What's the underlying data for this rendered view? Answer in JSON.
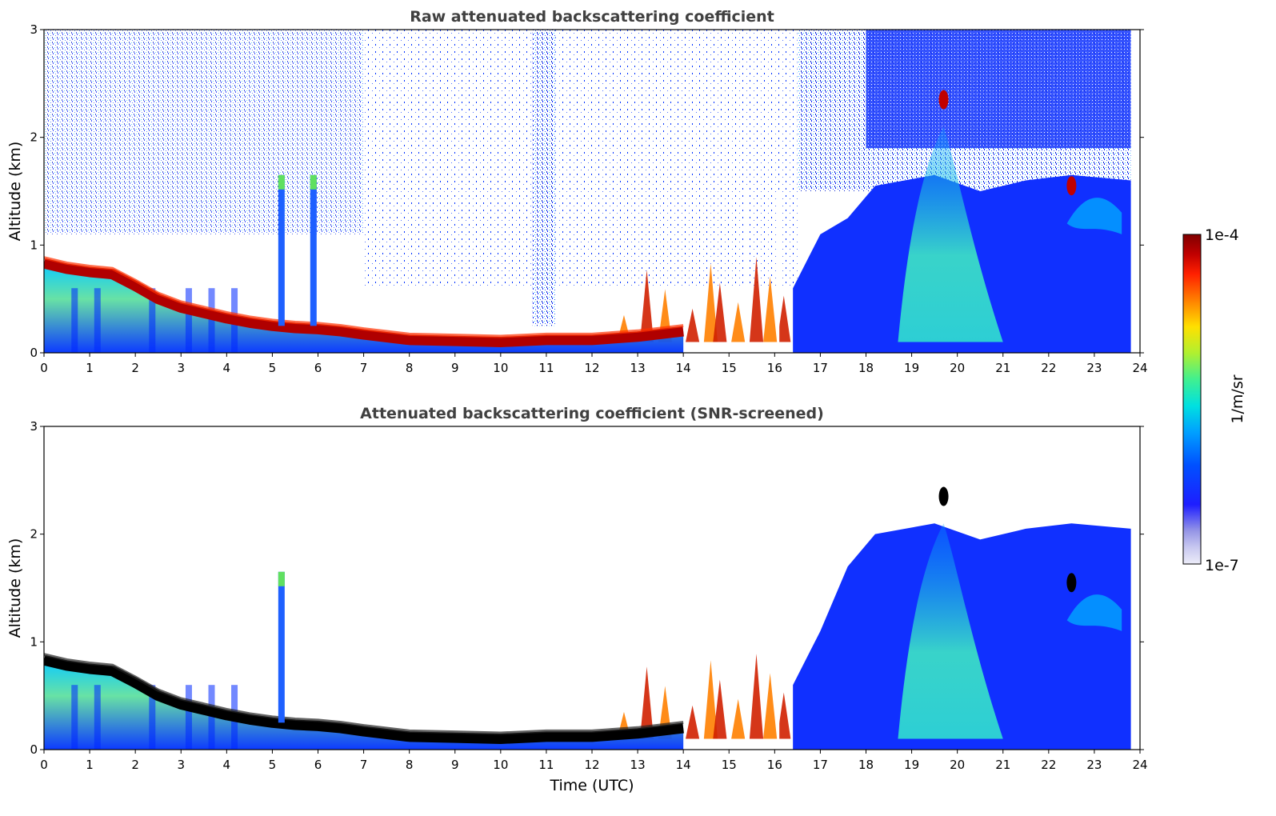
{
  "chart_data": [
    {
      "type": "heatmap",
      "title": "Raw attenuated backscattering coefficient",
      "xlabel": "",
      "ylabel": "Altitude (km)",
      "xlim": [
        0,
        24
      ],
      "ylim": [
        0,
        3
      ],
      "x_ticks": [
        "0",
        "1",
        "2",
        "3",
        "4",
        "5",
        "6",
        "7",
        "8",
        "9",
        "10",
        "11",
        "12",
        "13",
        "14",
        "15",
        "16",
        "17",
        "18",
        "19",
        "20",
        "21",
        "22",
        "23",
        "24"
      ],
      "y_ticks": [
        "0",
        "1",
        "2",
        "3"
      ],
      "boundary_layer_top_km": {
        "time_utc": [
          0,
          0.5,
          1,
          1.5,
          2,
          2.5,
          3,
          3.5,
          4,
          4.5,
          5,
          5.5,
          6,
          6.5,
          7,
          8,
          9,
          10,
          11,
          12,
          13,
          14
        ],
        "altitude_km": [
          0.83,
          0.78,
          0.75,
          0.73,
          0.62,
          0.5,
          0.42,
          0.37,
          0.32,
          0.28,
          0.25,
          0.23,
          0.22,
          0.2,
          0.17,
          0.12,
          0.11,
          0.1,
          0.12,
          0.12,
          0.15,
          0.2
        ]
      },
      "features": [
        {
          "time_utc": 5.2,
          "top_km": 1.65,
          "kind": "plume"
        },
        {
          "time_utc": 5.9,
          "top_km": 1.65,
          "kind": "plume"
        },
        {
          "time_utc": 19.7,
          "top_km": 2.35,
          "kind": "cloud"
        },
        {
          "time_utc": 22.5,
          "top_km": 1.55,
          "kind": "cloud"
        }
      ]
    },
    {
      "type": "heatmap",
      "title": "Attenuated backscattering coefficient (SNR-screened)",
      "xlabel": "Time (UTC)",
      "ylabel": "Altitude (km)",
      "xlim": [
        0,
        24
      ],
      "ylim": [
        0,
        3
      ],
      "x_ticks": [
        "0",
        "1",
        "2",
        "3",
        "4",
        "5",
        "6",
        "7",
        "8",
        "9",
        "10",
        "11",
        "12",
        "13",
        "14",
        "15",
        "16",
        "17",
        "18",
        "19",
        "20",
        "21",
        "22",
        "23",
        "24"
      ],
      "y_ticks": [
        "0",
        "1",
        "2",
        "3"
      ],
      "boundary_layer_top_km": {
        "time_utc": [
          0,
          0.5,
          1,
          1.5,
          2,
          2.5,
          3,
          3.5,
          4,
          4.5,
          5,
          5.5,
          6,
          6.5,
          7,
          8,
          9,
          10,
          11,
          12,
          13,
          14
        ],
        "altitude_km": [
          0.83,
          0.78,
          0.75,
          0.73,
          0.62,
          0.5,
          0.42,
          0.37,
          0.32,
          0.28,
          0.25,
          0.23,
          0.22,
          0.2,
          0.17,
          0.12,
          0.11,
          0.1,
          0.12,
          0.12,
          0.15,
          0.2
        ]
      },
      "features": [
        {
          "time_utc": 5.2,
          "top_km": 1.65,
          "kind": "plume"
        },
        {
          "time_utc": 19.7,
          "top_km": 2.35,
          "kind": "cloud"
        },
        {
          "time_utc": 22.5,
          "top_km": 1.55,
          "kind": "cloud"
        }
      ]
    }
  ],
  "colorbar": {
    "label": "1/m/sr",
    "max_label": "1e-4",
    "min_label": "1e-7",
    "scale": "log",
    "colors": [
      "#ececf8",
      "#c8c8f0",
      "#9696e6",
      "#1e1eff",
      "#0050ff",
      "#00a0ff",
      "#00e0e0",
      "#40f090",
      "#b0f030",
      "#ffe000",
      "#ff8000",
      "#ff2000",
      "#c00000",
      "#800000"
    ]
  }
}
